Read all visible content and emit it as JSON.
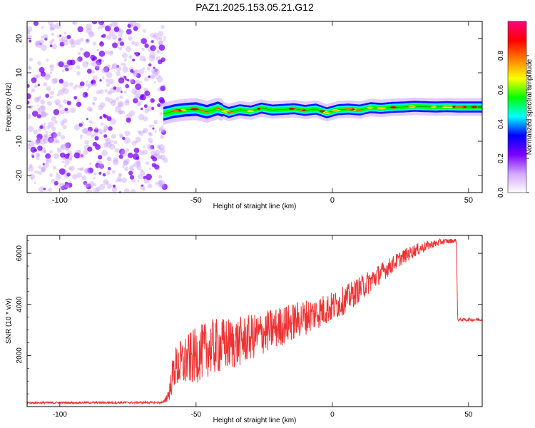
{
  "title": "PAZ1.2025.153.05.21.G12",
  "chart_data": [
    {
      "type": "heatmap",
      "xlabel": "Height of straight line (km)",
      "ylabel": "Frequency (Hz)",
      "xlim": [
        -112,
        55
      ],
      "ylim": [
        -25,
        25
      ],
      "xticks": [
        "-100",
        "-50",
        "0",
        "50"
      ],
      "yticks": [
        "-20",
        "-10",
        "0",
        "10",
        "20"
      ],
      "noise_region_x": [
        -112,
        -61
      ],
      "signal_trace": {
        "x": [
          -62,
          -58,
          -54,
          -50,
          -46,
          -42,
          -38,
          -34,
          -30,
          -26,
          -22,
          -18,
          -14,
          -10,
          -6,
          -2,
          2,
          6,
          10,
          14,
          18,
          22,
          26,
          30,
          34,
          38,
          42,
          46,
          50,
          55
        ],
        "freq": [
          -2.0,
          -1.2,
          -0.8,
          -0.6,
          -1.4,
          -0.4,
          -1.6,
          -0.8,
          -1.2,
          -0.3,
          -0.9,
          -0.7,
          -0.5,
          -1.0,
          -0.6,
          -1.7,
          -0.8,
          -0.6,
          -0.9,
          -0.2,
          -0.4,
          -0.1,
          0.0,
          0.2,
          0.1,
          0.0,
          0.1,
          0.0,
          0.0,
          0.0
        ]
      },
      "colorbar": {
        "label": "Normalized spectral amplitude",
        "range": [
          0.0,
          1.0
        ],
        "ticks": [
          "0.0",
          "0.2",
          "0.4",
          "0.6",
          "0.8"
        ],
        "colors": [
          "#ffffff",
          "#d3a6ff",
          "#7a00ff",
          "#0000ff",
          "#00ffff",
          "#00ff00",
          "#ffff00",
          "#ff8000",
          "#ff0000",
          "#ff0080"
        ]
      }
    },
    {
      "type": "line",
      "xlabel": "Height of straight line (km)",
      "ylabel": "SNR (10 * v/v)",
      "xlim": [
        -112,
        55
      ],
      "ylim": [
        0,
        6700
      ],
      "xticks": [
        "-100",
        "-50",
        "0",
        "50"
      ],
      "yticks": [
        "2000",
        "4000",
        "6000"
      ],
      "color": "#ee3333",
      "envelope": {
        "x": [
          -112,
          -62,
          -60,
          -58,
          -55,
          -50,
          -45,
          -40,
          -35,
          -30,
          -25,
          -20,
          -15,
          -10,
          -5,
          0,
          5,
          10,
          15,
          20,
          25,
          30,
          35,
          40,
          45.5,
          46,
          50,
          55
        ],
        "mean": [
          150,
          160,
          500,
          1500,
          1700,
          2000,
          2300,
          2400,
          2500,
          2700,
          2900,
          3100,
          3300,
          3500,
          3700,
          3900,
          4200,
          4600,
          5000,
          5400,
          5800,
          6100,
          6300,
          6450,
          6500,
          3400,
          3400,
          3400
        ],
        "spread": [
          40,
          40,
          300,
          800,
          1000,
          1100,
          1100,
          1100,
          1000,
          900,
          850,
          800,
          750,
          700,
          650,
          600,
          550,
          500,
          450,
          350,
          300,
          250,
          180,
          120,
          80,
          60,
          60,
          60
        ]
      }
    }
  ]
}
